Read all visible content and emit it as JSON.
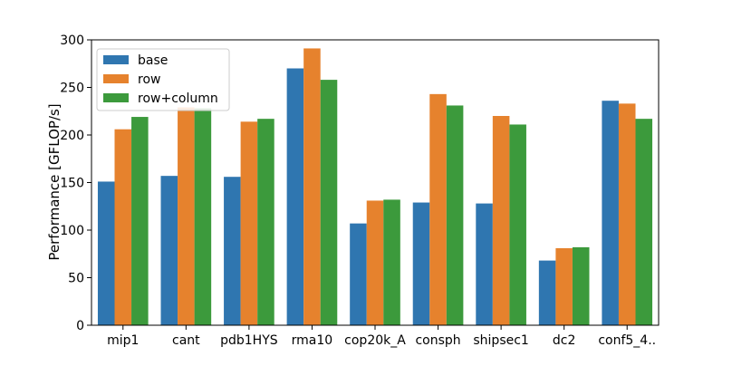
{
  "chart_data": {
    "type": "bar",
    "title": "",
    "xlabel": "",
    "ylabel": "Performance [GFLOP/s]",
    "ylim": [
      0,
      300
    ],
    "yticks": [
      0,
      50,
      100,
      150,
      200,
      250,
      300
    ],
    "grid": false,
    "legend_position": "top-left",
    "categories": [
      "mip1",
      "cant",
      "pdb1HYS",
      "rma10",
      "cop20k_A",
      "consph",
      "shipsec1",
      "dc2",
      "conf5_4.."
    ],
    "series": [
      {
        "name": "base",
        "color": "#2f76b0",
        "values": [
          151,
          157,
          156,
          270,
          107,
          129,
          128,
          68,
          236
        ]
      },
      {
        "name": "row",
        "color": "#e6822d",
        "values": [
          206,
          229,
          214,
          291,
          131,
          243,
          220,
          81,
          233
        ]
      },
      {
        "name": "row+column",
        "color": "#3c9a3c",
        "values": [
          219,
          228,
          217,
          258,
          132,
          231,
          211,
          82,
          217
        ]
      }
    ]
  }
}
